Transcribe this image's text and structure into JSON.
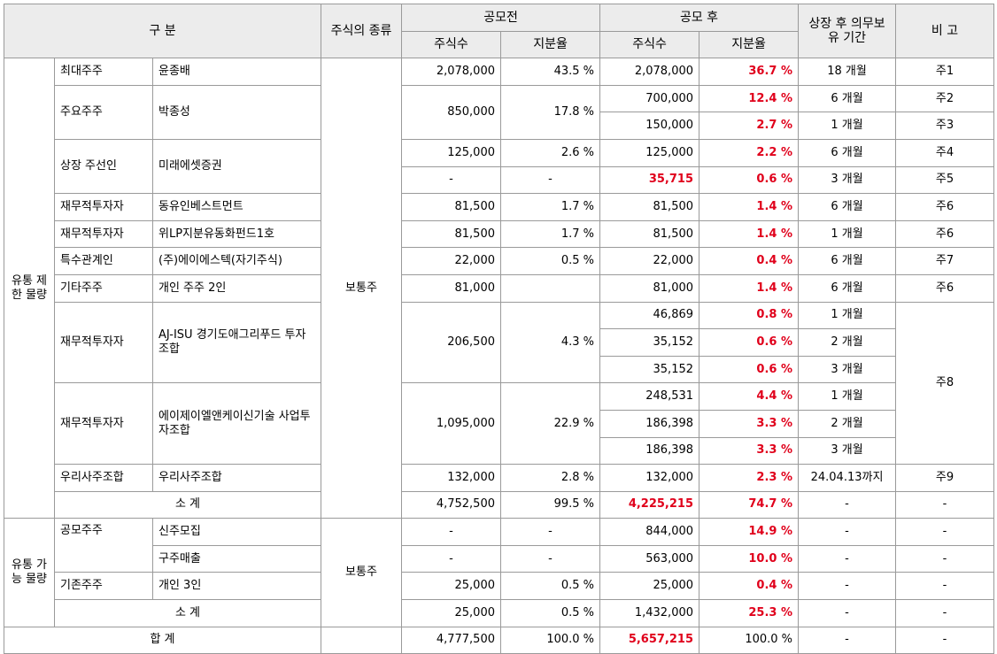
{
  "header": {
    "category": "구 분",
    "stock_type": "주식의 종류",
    "before": "공모전",
    "after": "공모 후",
    "lockup": "상장 후 의무보유 기간",
    "note": "비 고",
    "shares": "주식수",
    "ratio": "지분율"
  },
  "groups": {
    "restricted": "유통 제한 물량",
    "tradable": "유통 가능 물량",
    "common_stock": "보통주"
  },
  "rows": {
    "r1": {
      "holder": "최대주주",
      "name": "윤종배",
      "pre_shares": "2,078,000",
      "pre_ratio": "43.5 %",
      "post_shares": "2,078,000",
      "post_ratio": "36.7 %",
      "period": "18 개월",
      "note": "주1"
    },
    "r2": {
      "holder": "주요주주",
      "name": "박종성",
      "pre_shares": "850,000",
      "pre_ratio": "17.8 %",
      "post_shares": "700,000",
      "post_ratio": "12.4 %",
      "period": "6 개월",
      "note": "주2"
    },
    "r3": {
      "post_shares": "150,000",
      "post_ratio": "2.7 %",
      "period": "1 개월",
      "note": "주3"
    },
    "r4": {
      "holder": "상장 주선인",
      "name": "미래에셋증권",
      "pre_shares": "125,000",
      "pre_ratio": "2.6 %",
      "post_shares": "125,000",
      "post_ratio": "2.2 %",
      "period": "6 개월",
      "note": "주4"
    },
    "r5": {
      "pre_shares": "-",
      "pre_ratio": "-",
      "post_shares": "35,715",
      "post_ratio": "0.6 %",
      "period": "3 개월",
      "note": "주5"
    },
    "r6": {
      "holder": "재무적투자자",
      "name": "동유인베스트먼트",
      "pre_shares": "81,500",
      "pre_ratio": "1.7 %",
      "post_shares": "81,500",
      "post_ratio": "1.4 %",
      "period": "6 개월",
      "note": "주6"
    },
    "r7": {
      "holder": "재무적투자자",
      "name": "위LP지분유동화펀드1호",
      "pre_shares": "81,500",
      "pre_ratio": "1.7 %",
      "post_shares": "81,500",
      "post_ratio": "1.4 %",
      "period": "1 개월",
      "note": "주6"
    },
    "r8": {
      "holder": "특수관계인",
      "name": "(주)에이에스텍(자기주식)",
      "pre_shares": "22,000",
      "pre_ratio": "0.5 %",
      "post_shares": "22,000",
      "post_ratio": "0.4 %",
      "period": "6 개월",
      "note": "주7"
    },
    "r9": {
      "holder": "기타주주",
      "name": "개인 주주 2인",
      "pre_shares": "81,000",
      "pre_ratio": "",
      "post_shares": "81,000",
      "post_ratio": "1.4 %",
      "period": "6 개월",
      "note": "주6"
    },
    "r10": {
      "holder": "재무적투자자",
      "name": "AJ-ISU 경기도애그리푸드 투자조합",
      "pre_shares": "206,500",
      "pre_ratio": "4.3 %",
      "post_shares": "46,869",
      "post_ratio": "0.8 %",
      "period": "1 개월",
      "note": "주8"
    },
    "r11": {
      "post_shares": "35,152",
      "post_ratio": "0.6 %",
      "period": "2 개월"
    },
    "r12": {
      "post_shares": "35,152",
      "post_ratio": "0.6 %",
      "period": "3 개월"
    },
    "r13": {
      "holder": "재무적투자자",
      "name": "에이제이엘앤케이신기술 사업투자조합",
      "pre_shares": "1,095,000",
      "pre_ratio": "22.9 %",
      "post_shares": "248,531",
      "post_ratio": "4.4 %",
      "period": "1 개월"
    },
    "r14": {
      "post_shares": "186,398",
      "post_ratio": "3.3 %",
      "period": "2 개월"
    },
    "r15": {
      "post_shares": "186,398",
      "post_ratio": "3.3 %",
      "period": "3 개월"
    },
    "r16": {
      "holder": "우리사주조합",
      "name": "우리사주조합",
      "pre_shares": "132,000",
      "pre_ratio": "2.8 %",
      "post_shares": "132,000",
      "post_ratio": "2.3 %",
      "period": "24.04.13까지",
      "note": "주9"
    },
    "r17": {
      "label": "소 계",
      "pre_shares": "4,752,500",
      "pre_ratio": "99.5 %",
      "post_shares": "4,225,215",
      "post_ratio": "74.7 %",
      "period": "-",
      "note": "-"
    },
    "r18": {
      "holder": "공모주주",
      "name": "신주모집",
      "pre_shares": "-",
      "pre_ratio": "-",
      "post_shares": "844,000",
      "post_ratio": "14.9 %",
      "period": "-",
      "note": "-"
    },
    "r19": {
      "name": "구주매출",
      "pre_shares": "-",
      "pre_ratio": "-",
      "post_shares": "563,000",
      "post_ratio": "10.0 %",
      "period": "-",
      "note": "-"
    },
    "r20": {
      "holder": "기존주주",
      "name": "개인 3인",
      "pre_shares": "25,000",
      "pre_ratio": "0.5 %",
      "post_shares": "25,000",
      "post_ratio": "0.4 %",
      "period": "-",
      "note": "-"
    },
    "r21": {
      "label": "소 계",
      "pre_shares": "25,000",
      "pre_ratio": "0.5 %",
      "post_shares": "1,432,000",
      "post_ratio": "25.3 %",
      "period": "-",
      "note": "-"
    },
    "r22": {
      "label": "합 계",
      "pre_shares": "4,777,500",
      "pre_ratio": "100.0 %",
      "post_shares": "5,657,215",
      "post_ratio": "100.0 %",
      "period": "-",
      "note": "-"
    }
  },
  "colors": {
    "emphasis": "#e0001b",
    "header_bg": "#ececec",
    "border": "#9a9a9a"
  }
}
